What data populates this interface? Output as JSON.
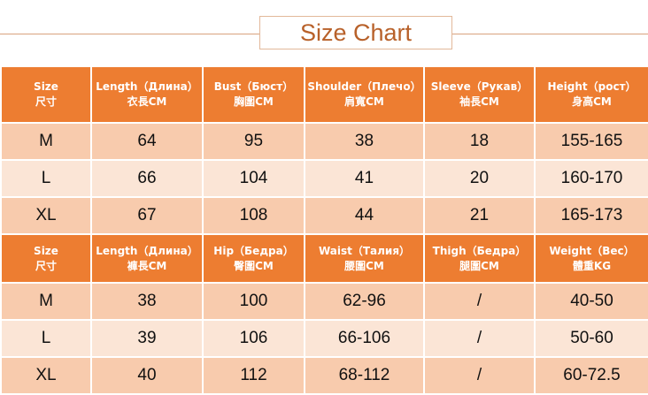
{
  "title": "Size Chart",
  "colors": {
    "header": "#ed7d31",
    "row_dark": "#f8cbad",
    "row_light": "#fbe5d6",
    "title_text": "#b8612a"
  },
  "top_table": {
    "headers": [
      {
        "en": "Size",
        "cn": "尺寸"
      },
      {
        "en": "Length（Длина）",
        "cn": "衣長CM"
      },
      {
        "en": "Bust（Бюст）",
        "cn": "胸圍CM"
      },
      {
        "en": "Shoulder（Плечо）",
        "cn": "肩寬CM"
      },
      {
        "en": "Sleeve（Рукав）",
        "cn": "袖長CM"
      },
      {
        "en": "Height（рост）",
        "cn": "身高CM"
      }
    ],
    "rows": [
      [
        "M",
        "64",
        "95",
        "38",
        "18",
        "155-165"
      ],
      [
        "L",
        "66",
        "104",
        "41",
        "20",
        "160-170"
      ],
      [
        "XL",
        "67",
        "108",
        "44",
        "21",
        "165-173"
      ]
    ]
  },
  "bottom_table": {
    "headers": [
      {
        "en": "Size",
        "cn": "尺寸"
      },
      {
        "en": "Length（Длина）",
        "cn": "褲長CM"
      },
      {
        "en": "Hip（Бедра）",
        "cn": "臀圍CM"
      },
      {
        "en": "Waist（Талия）",
        "cn": "腰圍CM"
      },
      {
        "en": "Thigh（Бедра）",
        "cn": "腿圍CM"
      },
      {
        "en": "Weight（Вес）",
        "cn": "體重KG"
      }
    ],
    "rows": [
      [
        "M",
        "38",
        "100",
        "62-96",
        "/",
        "40-50"
      ],
      [
        "L",
        "39",
        "106",
        "66-106",
        "/",
        "50-60"
      ],
      [
        "XL",
        "40",
        "112",
        "68-112",
        "/",
        "60-72.5"
      ]
    ]
  }
}
